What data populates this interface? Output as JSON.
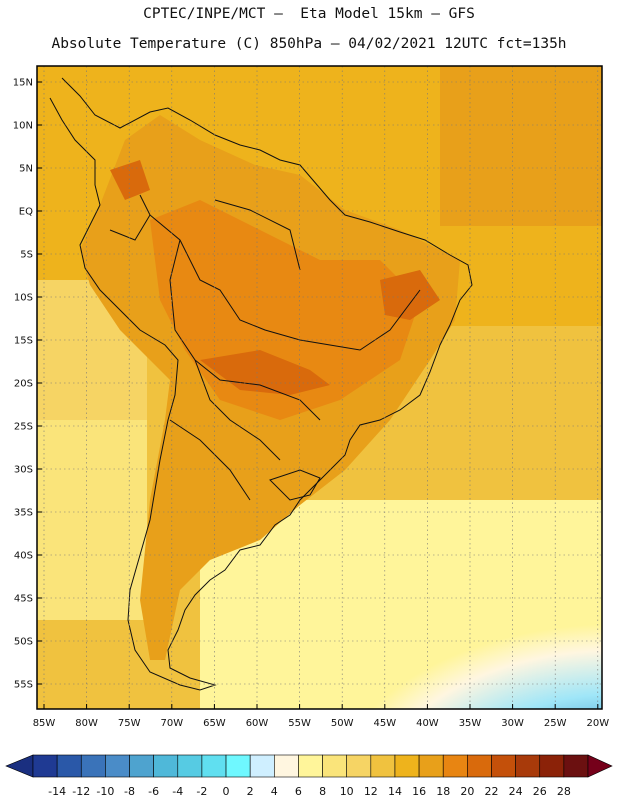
{
  "header": {
    "line1": "CPTEC/INPE/MCT —  Eta Model 15km — GFS",
    "line2": "Absolute Temperature (C) 850hPa — 04/02/2021 12UTC fct=135h"
  },
  "map": {
    "lat_labels": [
      "15N",
      "10N",
      "5N",
      "EQ",
      "5S",
      "10S",
      "15S",
      "20S",
      "25S",
      "30S",
      "35S",
      "40S",
      "45S",
      "50S",
      "55S"
    ],
    "lon_labels": [
      "85W",
      "80W",
      "75W",
      "70W",
      "65W",
      "60W",
      "55W",
      "50W",
      "45W",
      "40W",
      "35W",
      "30W",
      "25W",
      "20W"
    ]
  },
  "colorbar": {
    "labels": [
      "-14",
      "-12",
      "-10",
      "-8",
      "-6",
      "-4",
      "-2",
      "0",
      "2",
      "4",
      "6",
      "8",
      "10",
      "12",
      "14",
      "16",
      "18",
      "20",
      "22",
      "24",
      "26",
      "28"
    ],
    "colors": [
      "#1f3a93",
      "#2a58a8",
      "#3a73b9",
      "#4a8cc8",
      "#4ea3cf",
      "#4fb8d9",
      "#56cbe3",
      "#60dff0",
      "#6ff8ff",
      "#cfefff",
      "#fff6e0",
      "#fff59a",
      "#fae47a",
      "#f6d464",
      "#f0c23f",
      "#eeb31c",
      "#e8a01a",
      "#e88512",
      "#d96a0c",
      "#c4500a",
      "#a83a0a",
      "#8b2208",
      "#6b1010"
    ],
    "low_end_color": "#1a2f80",
    "high_end_color": "#75001a"
  }
}
